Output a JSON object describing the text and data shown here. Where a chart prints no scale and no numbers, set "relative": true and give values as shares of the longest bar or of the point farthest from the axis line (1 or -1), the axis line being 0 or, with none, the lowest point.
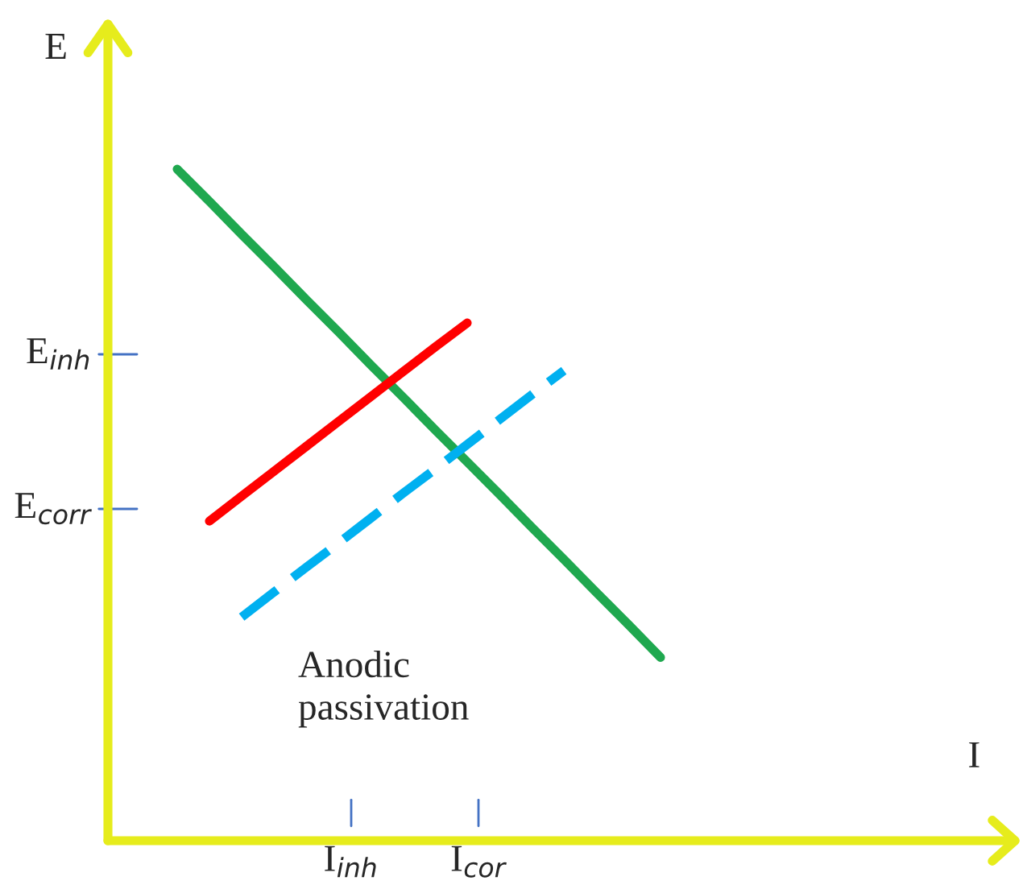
{
  "chart_data": {
    "type": "line",
    "relative": true,
    "ylabel": "E",
    "marker": "none",
    "categories": [
      null,
      null,
      null,
      null,
      null,
      null,
      null,
      null,
      null,
      null,
      null,
      null,
      null,
      null,
      null,
      null
    ],
    "series": [
      {
        "color": "#1fa84f",
        "line_style": "solid",
        "values": [
          1.0,
          0.952,
          0.903,
          0.855,
          0.806,
          0.758,
          0.709,
          0.661,
          0.612,
          0.564,
          0.516,
          0.467,
          0.419,
          0.37,
          0.322,
          0.273
        ]
      },
      {
        "color": "#ff0000",
        "line_style": "solid",
        "values": [
          null,
          0.476,
          0.513,
          0.55,
          0.587,
          0.624,
          0.661,
          0.698,
          0.735,
          0.771,
          null,
          null,
          null,
          null,
          null,
          null
        ]
      },
      {
        "color": "#00b0f0",
        "line_style": "dashed",
        "values": [
          null,
          null,
          0.333,
          0.37,
          0.407,
          0.443,
          0.48,
          0.517,
          0.553,
          0.59,
          0.627,
          0.664,
          0.7,
          null,
          null,
          null
        ]
      }
    ],
    "annotations": [
      "E$_{inh}$",
      "E$_{corr}$",
      "I$_{inh}$",
      "I$_{cor}$",
      "Anodic\npassivation",
      "I"
    ]
  }
}
